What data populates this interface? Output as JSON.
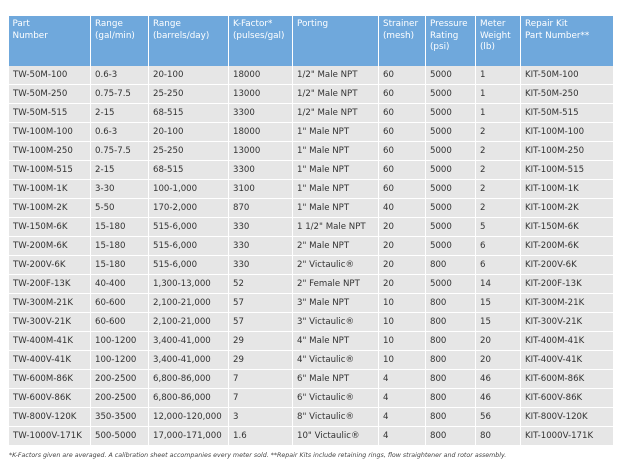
{
  "table": {
    "headers": [
      [
        "Part",
        "Number"
      ],
      [
        "Range",
        "(gal/min)"
      ],
      [
        "Range",
        "(barrels/day)"
      ],
      [
        "K-Factor*",
        "(pulses/gal)"
      ],
      [
        "Porting"
      ],
      [
        "Strainer",
        "(mesh)"
      ],
      [
        "Pressure",
        "Rating",
        "(psi)"
      ],
      [
        "Meter",
        "Weight",
        "(lb)"
      ],
      [
        "Repair Kit",
        "Part Number**"
      ]
    ],
    "rows": [
      [
        "TW-50M-100",
        "0.6-3",
        "20-100",
        "18000",
        "1/2\" Male NPT",
        "60",
        "5000",
        "1",
        "KIT-50M-100"
      ],
      [
        "TW-50M-250",
        "0.75-7.5",
        "25-250",
        "13000",
        "1/2\" Male NPT",
        "60",
        "5000",
        "1",
        "KIT-50M-250"
      ],
      [
        "TW-50M-515",
        "2-15",
        "68-515",
        "3300",
        "1/2\" Male NPT",
        "60",
        "5000",
        "1",
        "KIT-50M-515"
      ],
      [
        "TW-100M-100",
        "0.6-3",
        "20-100",
        "18000",
        "1\" Male NPT",
        "60",
        "5000",
        "2",
        "KIT-100M-100"
      ],
      [
        "TW-100M-250",
        "0.75-7.5",
        "25-250",
        "13000",
        "1\" Male NPT",
        "60",
        "5000",
        "2",
        "KIT-100M-250"
      ],
      [
        "TW-100M-515",
        "2-15",
        "68-515",
        "3300",
        "1\" Male NPT",
        "60",
        "5000",
        "2",
        "KIT-100M-515"
      ],
      [
        "TW-100M-1K",
        "3-30",
        "100-1,000",
        "3100",
        "1\" Male NPT",
        "60",
        "5000",
        "2",
        "KIT-100M-1K"
      ],
      [
        "TW-100M-2K",
        "5-50",
        "170-2,000",
        "870",
        "1\" Male NPT",
        "40",
        "5000",
        "2",
        "KIT-100M-2K"
      ],
      [
        "TW-150M-6K",
        "15-180",
        "515-6,000",
        "330",
        "1 1/2\" Male NPT",
        "20",
        "5000",
        "5",
        "KIT-150M-6K"
      ],
      [
        "TW-200M-6K",
        "15-180",
        "515-6,000",
        "330",
        "2\" Male NPT",
        "20",
        "5000",
        "6",
        "KIT-200M-6K"
      ],
      [
        "TW-200V-6K",
        "15-180",
        "515-6,000",
        "330",
        "2\" Victaulic®",
        "20",
        "800",
        "6",
        "KIT-200V-6K"
      ],
      [
        "TW-200F-13K",
        "40-400",
        "1,300-13,000",
        "52",
        "2\" Female NPT",
        "20",
        "5000",
        "14",
        "KIT-200F-13K"
      ],
      [
        "TW-300M-21K",
        "60-600",
        "2,100-21,000",
        "57",
        "3\" Male NPT",
        "10",
        "800",
        "15",
        "KIT-300M-21K"
      ],
      [
        "TW-300V-21K",
        "60-600",
        "2,100-21,000",
        "57",
        "3\" Victaulic®",
        "10",
        "800",
        "15",
        "KIT-300V-21K"
      ],
      [
        "TW-400M-41K",
        "100-1200",
        "3,400-41,000",
        "29",
        "4\" Male NPT",
        "10",
        "800",
        "20",
        "KIT-400M-41K"
      ],
      [
        "TW-400V-41K",
        "100-1200",
        "3,400-41,000",
        "29",
        "4\" Victaulic®",
        "10",
        "800",
        "20",
        "KIT-400V-41K"
      ],
      [
        "TW-600M-86K",
        "200-2500",
        "6,800-86,000",
        "7",
        "6\" Male NPT",
        "4",
        "800",
        "46",
        "KIT-600M-86K"
      ],
      [
        "TW-600V-86K",
        "200-2500",
        "6,800-86,000",
        "7",
        "6\" Victaulic®",
        "4",
        "800",
        "46",
        "KIT-600V-86K"
      ],
      [
        "TW-800V-120K",
        "350-3500",
        "12,000-120,000",
        "3",
        "8\" Victaulic®",
        "4",
        "800",
        "56",
        "KIT-800V-120K"
      ],
      [
        "TW-1000V-171K",
        "500-5000",
        "17,000-171,000",
        "1.6",
        "10\" Victaulic®",
        "4",
        "800",
        "80",
        "KIT-1000V-171K"
      ]
    ]
  },
  "footnote": "*K-Factors given are averaged. A calibration sheet accompanies every meter sold. **Repair Kits include retaining rings, flow straightener and rotor assembly.",
  "colors": {
    "header_bg": "#6fa8dc",
    "row_bg": "#e6e6e6"
  }
}
